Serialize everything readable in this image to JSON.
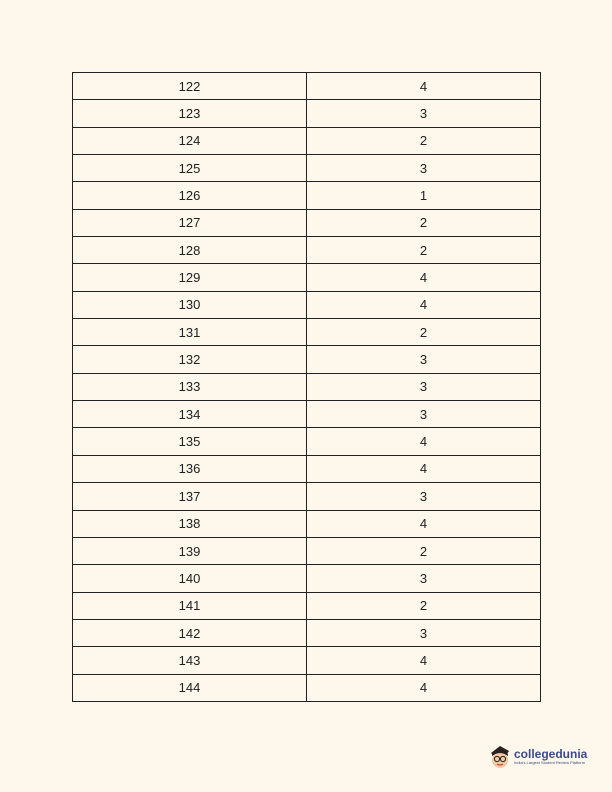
{
  "table": {
    "rows": [
      [
        "122",
        "4"
      ],
      [
        "123",
        "3"
      ],
      [
        "124",
        "2"
      ],
      [
        "125",
        "3"
      ],
      [
        "126",
        "1"
      ],
      [
        "127",
        "2"
      ],
      [
        "128",
        "2"
      ],
      [
        "129",
        "4"
      ],
      [
        "130",
        "4"
      ],
      [
        "131",
        "2"
      ],
      [
        "132",
        "3"
      ],
      [
        "133",
        "3"
      ],
      [
        "134",
        "3"
      ],
      [
        "135",
        "4"
      ],
      [
        "136",
        "4"
      ],
      [
        "137",
        "3"
      ],
      [
        "138",
        "4"
      ],
      [
        "139",
        "2"
      ],
      [
        "140",
        "3"
      ],
      [
        "141",
        "2"
      ],
      [
        "142",
        "3"
      ],
      [
        "143",
        "4"
      ],
      [
        "144",
        "4"
      ]
    ]
  },
  "logo": {
    "name": "collegedunia",
    "tagline": "India's Largest Student Review Platform",
    "color": "#3b4a8c"
  }
}
